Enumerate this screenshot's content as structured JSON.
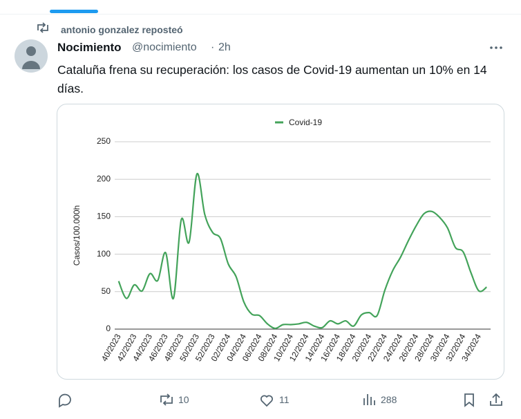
{
  "retweet": {
    "label": "antonio gonzalez reposteó"
  },
  "tweet": {
    "name": "Nocimiento",
    "handle": "@nocimiento",
    "time": "2h",
    "text": "Cataluña frena su recuperación: los casos de Covid-19 aumentan un 10% en 14 días.",
    "stats": {
      "retweets": 10,
      "likes": 11,
      "views": 288
    }
  },
  "chart_data": {
    "type": "line",
    "y_label": "Casos/100.000h",
    "legend_position": "top",
    "grid": true,
    "categories": [
      "40/2023",
      null,
      "42/2023",
      null,
      "44/2023",
      null,
      "46/2023",
      null,
      "48/2023",
      null,
      "50/2023",
      null,
      "52/2023",
      null,
      "02/2024",
      null,
      "04/2024",
      null,
      "06/2024",
      null,
      "08/2024",
      null,
      "10/2024",
      null,
      "12/2024",
      null,
      "14/2024",
      null,
      "16/2024",
      null,
      "18/2024",
      null,
      "20/2024",
      null,
      "22/2024",
      null,
      "24/2024",
      null,
      "26/2024",
      null,
      "28/2024",
      null,
      "30/2024",
      null,
      "32/2024",
      null,
      "34/2024",
      null
    ],
    "series": [
      {
        "name": "Covid-19",
        "color": "#43a35a",
        "values": [
          64,
          41,
          59,
          51,
          74,
          65,
          102,
          41,
          146,
          116,
          207,
          153,
          129,
          121,
          87,
          70,
          36,
          20,
          18,
          7,
          1,
          6,
          6,
          7,
          9,
          4,
          2,
          11,
          7,
          11,
          4,
          19,
          22,
          18,
          52,
          78,
          96,
          118,
          138,
          154,
          157,
          149,
          135,
          109,
          103,
          75,
          51,
          56
        ]
      }
    ],
    "ylim": [
      0,
      250
    ],
    "yticks": [
      0,
      50,
      100,
      150,
      200,
      250
    ]
  }
}
